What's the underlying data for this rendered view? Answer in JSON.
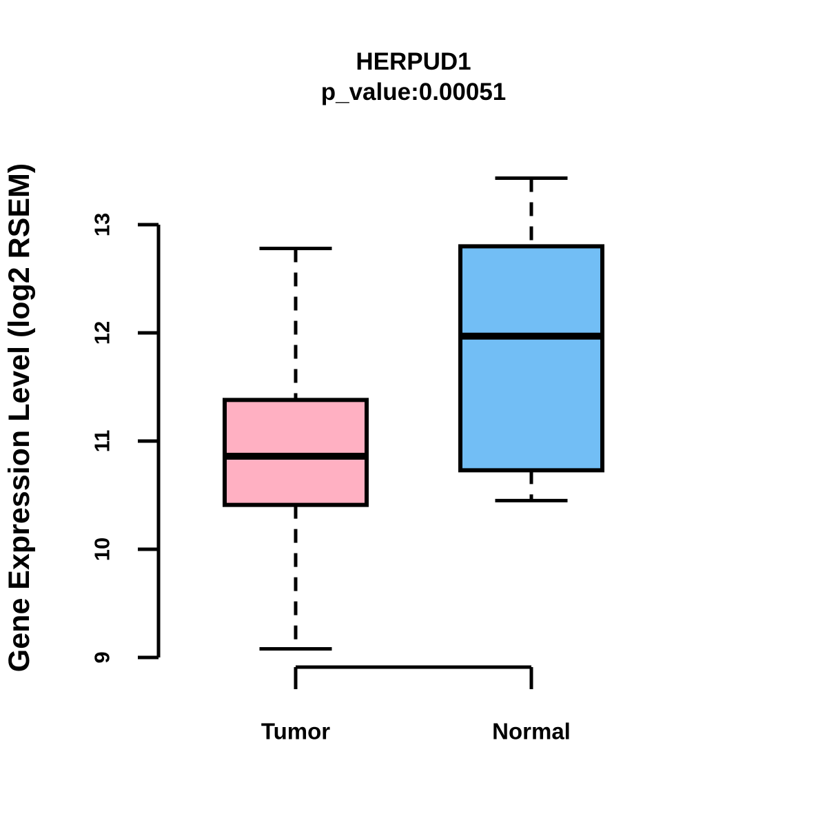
{
  "chart_data": {
    "type": "boxplot",
    "title": "HERPUD1",
    "subtitle": "p_value:0.00051",
    "ylabel": "Gene Expression Level (log2 RSEM)",
    "xlabel": "",
    "categories": [
      "Tumor",
      "Normal"
    ],
    "y_ticks": [
      9,
      10,
      11,
      12,
      13
    ],
    "ylim": [
      8.9,
      13.6
    ],
    "grid": false,
    "legend": "none",
    "series": [
      {
        "name": "Tumor",
        "fill_color": "#FFB0C2",
        "border_color": "#000000",
        "whisker_low": 9.08,
        "q1": 10.41,
        "median": 10.86,
        "q3": 11.38,
        "whisker_high": 12.78
      },
      {
        "name": "Normal",
        "fill_color": "#72BEF5",
        "border_color": "#000000",
        "whisker_low": 10.45,
        "q1": 10.73,
        "median": 11.97,
        "q3": 12.8,
        "whisker_high": 13.43
      }
    ]
  }
}
